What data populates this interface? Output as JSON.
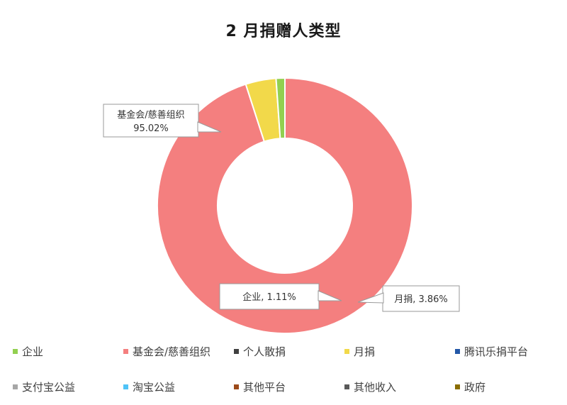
{
  "chart_data": {
    "type": "pie",
    "title": "2 月捐赠人类型",
    "categories": [
      "企业",
      "基金会/慈善组织",
      "个人散捐",
      "月捐",
      "腾讯乐捐平台",
      "支付宝公益",
      "淘宝公益",
      "其他平台",
      "其他收入",
      "政府"
    ],
    "values": [
      1.11,
      95.02,
      0,
      3.86,
      0,
      0,
      0,
      0,
      0,
      0
    ],
    "colors": [
      "#92d050",
      "#f47f7f",
      "#404040",
      "#f2d94a",
      "#2458a8",
      "#a6a6a6",
      "#4fc3f7",
      "#9c4a1a",
      "#595959",
      "#8a6d00"
    ],
    "data_labels": {
      "企业": {
        "name": "企业",
        "value": "1.11%"
      },
      "基金会/慈善组织": {
        "name": "基金会/慈善组织",
        "value": "95.02%"
      },
      "月捐": {
        "name": "月捐",
        "value": "3.86%"
      }
    },
    "legend_position": "bottom"
  }
}
